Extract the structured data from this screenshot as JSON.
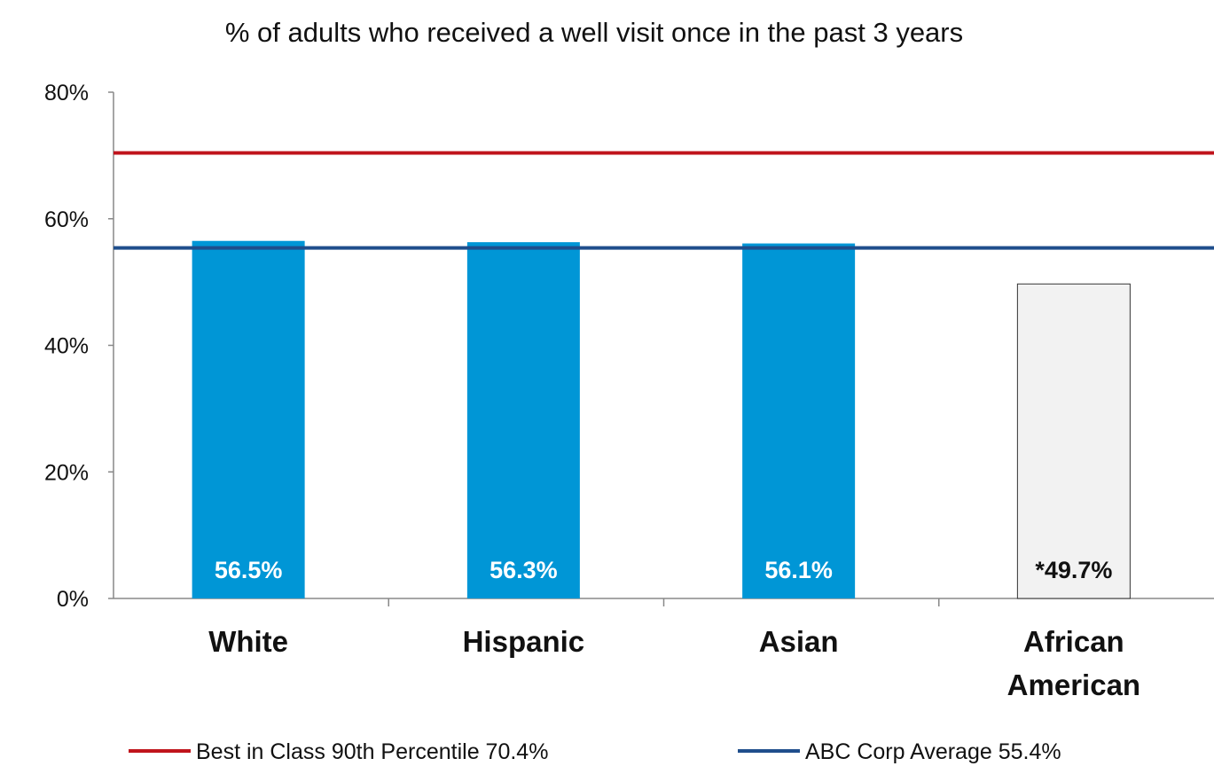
{
  "chart_data": {
    "type": "bar",
    "title": "% of adults who received a well visit once in the past 3 years",
    "categories": [
      "White",
      "Hispanic",
      "Asian",
      "African American"
    ],
    "series": [
      {
        "values": [
          56.5,
          56.3,
          56.1,
          49.7
        ],
        "value_labels": [
          "56.5%",
          "56.3%",
          "56.1%",
          "*49.7%"
        ],
        "colors": [
          "#0096d6",
          "#0096d6",
          "#0096d6",
          "#f2f2f2"
        ]
      }
    ],
    "ylim": [
      0,
      80
    ],
    "yticks": [
      0,
      20,
      40,
      60,
      80
    ],
    "ytick_labels": [
      "0%",
      "20%",
      "40%",
      "60%",
      "80%"
    ],
    "grid": false,
    "legend_position": "bottom",
    "reference_lines": [
      {
        "label": "Best in Class 90th Percentile 70.4%",
        "value": 70.4,
        "color": "#c0141c"
      },
      {
        "label": "ABC Corp Average 55.4%",
        "value": 55.4,
        "color": "#1f4e8c"
      }
    ]
  }
}
